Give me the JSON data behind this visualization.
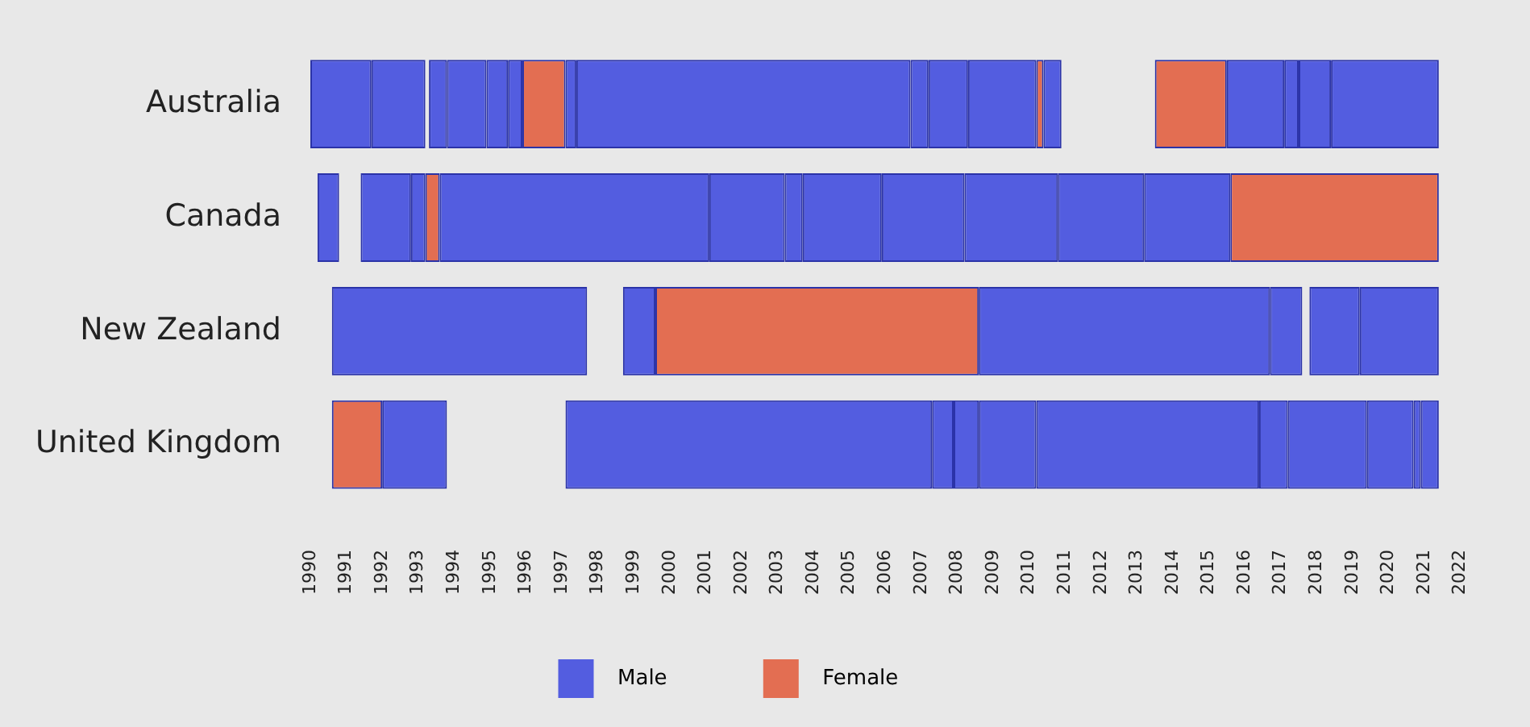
{
  "chart_data": {
    "type": "bar",
    "orientation": "horizontal",
    "categories": [
      "Australia",
      "Canada",
      "New Zealand",
      "United Kingdom"
    ],
    "xlim": [
      1990,
      2022
    ],
    "xticks": [
      1990,
      1991,
      1992,
      1993,
      1994,
      1995,
      1996,
      1997,
      1998,
      1999,
      2000,
      2001,
      2002,
      2003,
      2004,
      2005,
      2006,
      2007,
      2008,
      2009,
      2010,
      2011,
      2012,
      2013,
      2014,
      2015,
      2016,
      2017,
      2018,
      2019,
      2020,
      2021,
      2022
    ],
    "grid": false,
    "legend": "bottom",
    "series": [
      {
        "name": "Male",
        "color": "#535de0",
        "values": [
          1.7,
          0.6,
          7.1,
          1.8
        ],
        "base": [
          1990.0,
          1990.2,
          1990.6,
          1992.0
        ]
      },
      {
        "color": "#535de0",
        "values": [
          1.5,
          1.4,
          0.9,
          10.2
        ],
        "base": [
          1991.7,
          1991.4,
          1998.7,
          1997.1
        ]
      },
      {
        "color": "#535de0",
        "values": [
          0.5,
          0.4,
          8.1,
          0.6
        ],
        "base": [
          1993.3,
          1992.8,
          2008.6,
          2007.3
        ]
      },
      {
        "color": "#535de0",
        "values": [
          1.1,
          7.5,
          0.9,
          0.7
        ],
        "base": [
          1993.8,
          1993.6,
          2016.7,
          2007.9
        ]
      },
      {
        "color": "#535de0",
        "values": [
          0.6,
          2.1,
          1.4,
          1.6
        ],
        "base": [
          1994.9,
          2001.1,
          2017.8,
          2008.6
        ]
      },
      {
        "color": "#535de0",
        "values": [
          0.4,
          0.5,
          2.2,
          6.2
        ],
        "base": [
          1995.5,
          2003.2,
          2019.2,
          2010.2
        ]
      },
      {
        "color": "#535de0",
        "values": [
          0.3,
          2.2,
          null,
          0.8
        ],
        "base": [
          1997.1,
          2003.7,
          null,
          2016.4
        ]
      },
      {
        "color": "#535de0",
        "values": [
          9.3,
          2.3,
          null,
          2.2
        ],
        "base": [
          1997.4,
          2005.9,
          null,
          2017.2
        ]
      },
      {
        "color": "#535de0",
        "values": [
          0.5,
          2.6,
          null,
          1.3
        ],
        "base": [
          2006.7,
          2008.2,
          null,
          2019.4
        ]
      },
      {
        "color": "#535de0",
        "values": [
          1.1,
          2.4,
          null,
          0.2
        ],
        "base": [
          2007.2,
          2010.8,
          null,
          2020.7
        ]
      },
      {
        "color": "#535de0",
        "values": [
          1.9,
          2.4,
          null,
          0.5
        ],
        "base": [
          2008.3,
          2013.2,
          null,
          2020.9
        ]
      },
      {
        "color": "#535de0",
        "values": [
          0.5,
          null,
          null,
          null
        ],
        "base": [
          2010.4,
          null,
          null,
          null
        ]
      },
      {
        "color": "#535de0",
        "values": [
          1.6,
          null,
          null,
          null
        ],
        "base": [
          2015.5,
          null,
          null,
          null
        ]
      },
      {
        "color": "#535de0",
        "values": [
          0.4,
          null,
          null,
          null
        ],
        "base": [
          2017.1,
          null,
          null,
          null
        ]
      },
      {
        "color": "#535de0",
        "values": [
          0.9,
          null,
          null,
          null
        ],
        "base": [
          2017.5,
          null,
          null,
          null
        ]
      },
      {
        "color": "#535de0",
        "values": [
          3.0,
          null,
          null,
          null
        ],
        "base": [
          2018.4,
          null,
          null,
          null
        ]
      },
      {
        "name": "Female",
        "color": "#e36e52",
        "values": [
          1.2,
          0.4,
          9.0,
          1.4
        ],
        "base": [
          1995.9,
          1993.2,
          1999.6,
          1990.6
        ]
      },
      {
        "color": "#e36e52",
        "values": [
          0.2,
          5.8,
          null,
          null
        ],
        "base": [
          2010.2,
          2015.6,
          null,
          null
        ]
      },
      {
        "color": "#e36e52",
        "values": [
          2.0,
          null,
          null,
          null
        ],
        "base": [
          2013.5,
          null,
          null,
          null
        ]
      }
    ]
  }
}
